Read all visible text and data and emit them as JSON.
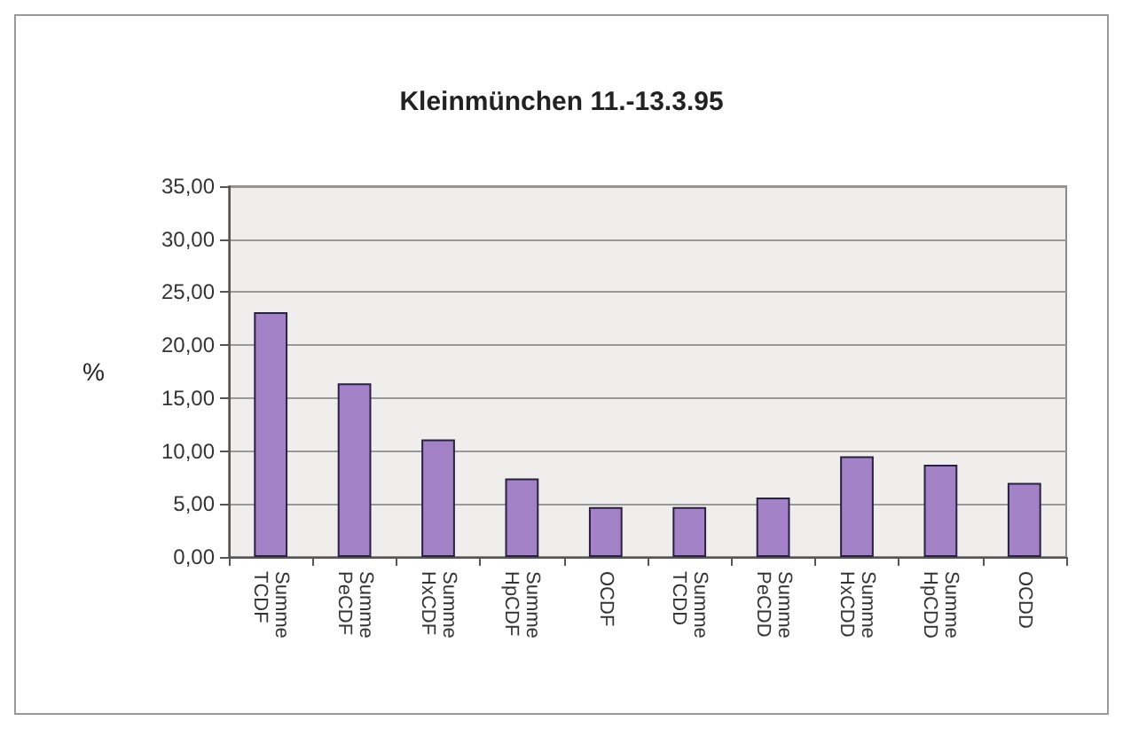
{
  "chart_data": {
    "type": "bar",
    "title": "Kleinmünchen 11.-13.3.95",
    "ylabel": "%",
    "categories": [
      "Summe TCDF",
      "Summe PeCDF",
      "Summe HxCDF",
      "Summe HpCDF",
      "OCDF",
      "Summe TCDD",
      "Summe PeCDD",
      "Summe HxCDD",
      "Summe HpCDD",
      "OCDD"
    ],
    "values": [
      23.1,
      16.4,
      11.1,
      7.4,
      4.7,
      4.7,
      5.6,
      9.5,
      8.7,
      7.0
    ],
    "color": "#a482c8",
    "ylim": [
      0,
      35
    ],
    "yticks": [
      {
        "value": 0,
        "label": "0,00"
      },
      {
        "value": 5,
        "label": "5,00"
      },
      {
        "value": 10,
        "label": "10,00"
      },
      {
        "value": 15,
        "label": "15,00"
      },
      {
        "value": 20,
        "label": "20,00"
      },
      {
        "value": 25,
        "label": "25,00"
      },
      {
        "value": 30,
        "label": "30,00"
      },
      {
        "value": 35,
        "label": "35,00"
      }
    ],
    "grid": "y"
  }
}
